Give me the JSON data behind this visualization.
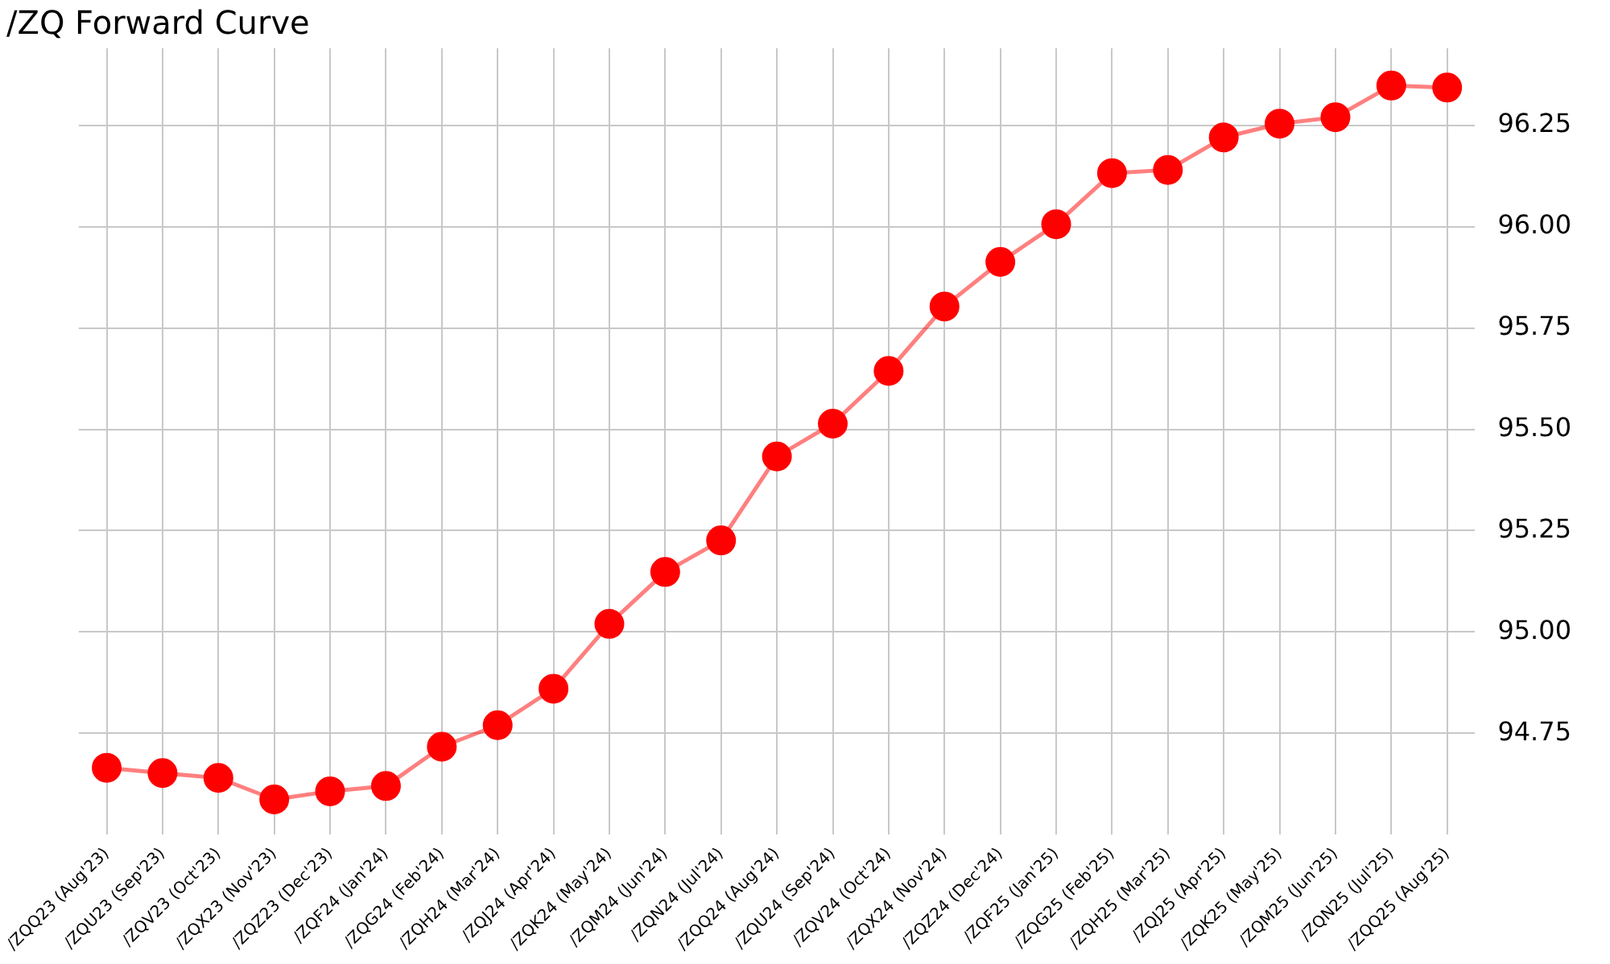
{
  "chart_data": {
    "type": "line",
    "title": "/ZQ Forward Curve",
    "categories": [
      "/ZQQ23 (Aug'23)",
      "/ZQU23 (Sep'23)",
      "/ZQV23 (Oct'23)",
      "/ZQX23 (Nov'23)",
      "/ZQZ23 (Dec'23)",
      "/ZQF24 (Jan'24)",
      "/ZQG24 (Feb'24)",
      "/ZQH24 (Mar'24)",
      "/ZQJ24 (Apr'24)",
      "/ZQK24 (May'24)",
      "/ZQM24 (Jun'24)",
      "/ZQN24 (Jul'24)",
      "/ZQQ24 (Aug'24)",
      "/ZQU24 (Sep'24)",
      "/ZQV24 (Oct'24)",
      "/ZQX24 (Nov'24)",
      "/ZQZ24 (Dec'24)",
      "/ZQF25 (Jan'25)",
      "/ZQG25 (Feb'25)",
      "/ZQH25 (Mar'25)",
      "/ZQJ25 (Apr'25)",
      "/ZQK25 (May'25)",
      "/ZQM25 (Jun'25)",
      "/ZQN25 (Jul'25)",
      "/ZQQ25 (Aug'25)"
    ],
    "series": [
      {
        "color": "#ff0000",
        "values": [
          94.665,
          94.652,
          94.64,
          94.587,
          94.607,
          94.62,
          94.717,
          94.77,
          94.86,
          95.02,
          95.148,
          95.226,
          95.433,
          95.514,
          95.644,
          95.803,
          95.913,
          96.006,
          96.132,
          96.14,
          96.22,
          96.254,
          96.27,
          96.348,
          96.343
        ]
      }
    ],
    "ylim": [
      94.5,
      96.44
    ],
    "yticks": [
      {
        "value": 94.75,
        "label": "94.75"
      },
      {
        "value": 95,
        "label": "95.00"
      },
      {
        "value": 95.25,
        "label": "95.25"
      },
      {
        "value": 95.5,
        "label": "95.50"
      },
      {
        "value": 95.75,
        "label": "95.75"
      },
      {
        "value": 96,
        "label": "96.00"
      },
      {
        "value": 96.25,
        "label": "96.25"
      }
    ],
    "grid": true,
    "marker": "circle",
    "line_style": "solid"
  }
}
